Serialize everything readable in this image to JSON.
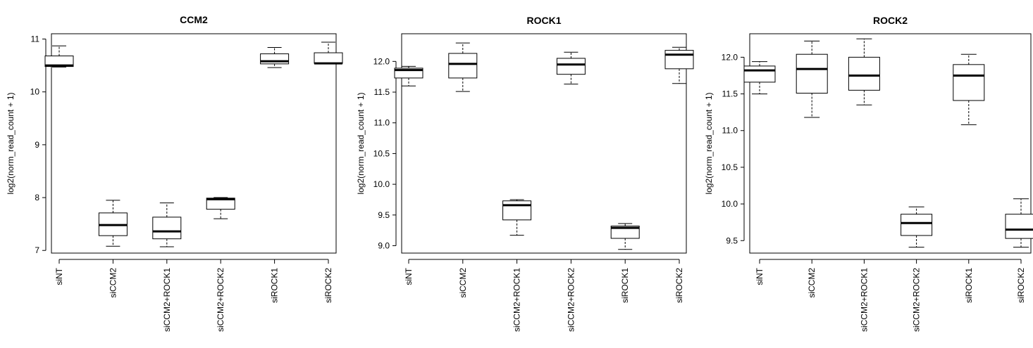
{
  "chart_data": [
    {
      "type": "boxplot",
      "title": "CCM2",
      "ylabel": "log2(norm_read_count + 1)",
      "xlabel": "",
      "ylim": [
        6.95,
        11.1
      ],
      "yticks": [
        7,
        8,
        9,
        10,
        11
      ],
      "categories": [
        "siNT",
        "siCCM2",
        "siCCM2+ROCK1",
        "siCCM2+ROCK2",
        "siROCK1",
        "siROCK2"
      ],
      "boxes": [
        {
          "min": 10.47,
          "q1": 10.48,
          "median": 10.5,
          "q3": 10.68,
          "max": 10.87
        },
        {
          "min": 7.08,
          "q1": 7.28,
          "median": 7.48,
          "q3": 7.71,
          "max": 7.95
        },
        {
          "min": 7.07,
          "q1": 7.22,
          "median": 7.36,
          "q3": 7.63,
          "max": 7.9
        },
        {
          "min": 7.6,
          "q1": 7.78,
          "median": 7.97,
          "q3": 7.99,
          "max": 8.0
        },
        {
          "min": 10.46,
          "q1": 10.53,
          "median": 10.58,
          "q3": 10.72,
          "max": 10.84
        },
        {
          "min": 10.54,
          "q1": 10.54,
          "median": 10.54,
          "q3": 10.74,
          "max": 10.94
        }
      ]
    },
    {
      "type": "boxplot",
      "title": "ROCK1",
      "ylabel": "log2(norm_read_count + 1)",
      "xlabel": "",
      "ylim": [
        8.88,
        12.45
      ],
      "yticks": [
        9.0,
        9.5,
        10.0,
        10.5,
        11.0,
        11.5,
        12.0
      ],
      "categories": [
        "siNT",
        "siCCM2",
        "siCCM2+ROCK1",
        "siCCM2+ROCK2",
        "siROCK1",
        "siROCK2"
      ],
      "boxes": [
        {
          "min": 11.6,
          "q1": 11.73,
          "median": 11.86,
          "q3": 11.89,
          "max": 11.92
        },
        {
          "min": 11.51,
          "q1": 11.73,
          "median": 11.96,
          "q3": 12.13,
          "max": 12.3
        },
        {
          "min": 9.17,
          "q1": 9.42,
          "median": 9.66,
          "q3": 9.73,
          "max": 9.75
        },
        {
          "min": 11.63,
          "q1": 11.79,
          "median": 11.95,
          "q3": 12.05,
          "max": 12.15
        },
        {
          "min": 8.94,
          "q1": 9.12,
          "median": 9.29,
          "q3": 9.32,
          "max": 9.36
        },
        {
          "min": 11.64,
          "q1": 11.88,
          "median": 12.11,
          "q3": 12.18,
          "max": 12.23
        }
      ]
    },
    {
      "type": "boxplot",
      "title": "ROCK2",
      "ylabel": "log2(norm_read_count + 1)",
      "xlabel": "",
      "ylim": [
        9.33,
        12.32
      ],
      "yticks": [
        9.5,
        10.0,
        10.5,
        11.0,
        11.5,
        12.0
      ],
      "categories": [
        "siNT",
        "siCCM2",
        "siCCM2+ROCK1",
        "siCCM2+ROCK2",
        "siROCK1",
        "siROCK2"
      ],
      "boxes": [
        {
          "min": 11.5,
          "q1": 11.66,
          "median": 11.82,
          "q3": 11.88,
          "max": 11.94
        },
        {
          "min": 11.18,
          "q1": 11.51,
          "median": 11.84,
          "q3": 12.04,
          "max": 12.22
        },
        {
          "min": 11.35,
          "q1": 11.55,
          "median": 11.75,
          "q3": 12.0,
          "max": 12.25
        },
        {
          "min": 9.41,
          "q1": 9.57,
          "median": 9.74,
          "q3": 9.86,
          "max": 9.96
        },
        {
          "min": 11.08,
          "q1": 11.41,
          "median": 11.75,
          "q3": 11.9,
          "max": 12.04
        },
        {
          "min": 9.41,
          "q1": 9.53,
          "median": 9.65,
          "q3": 9.86,
          "max": 10.07
        }
      ]
    }
  ]
}
